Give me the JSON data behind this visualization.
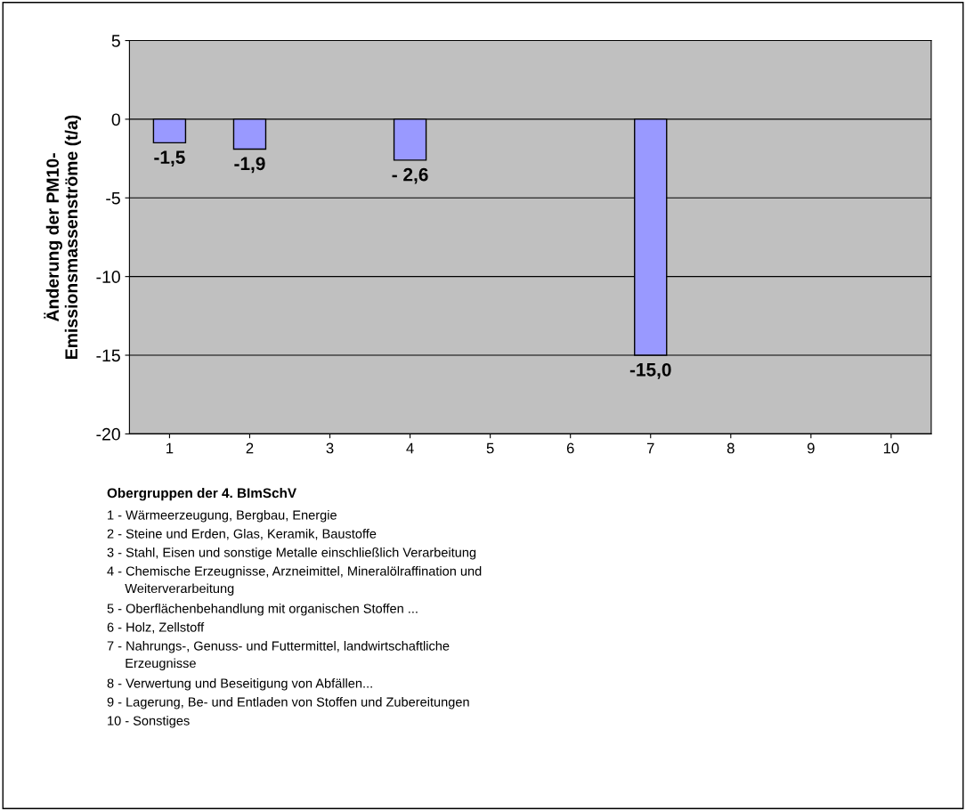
{
  "chart_data": {
    "type": "bar",
    "ylabel": "Änderung der PM10-\nEmissionsmassenströme (t/a)",
    "categories": [
      "1",
      "2",
      "3",
      "4",
      "5",
      "6",
      "7",
      "8",
      "9",
      "10"
    ],
    "values": [
      -1.5,
      -1.9,
      null,
      -2.6,
      null,
      null,
      -15.0,
      null,
      null,
      null
    ],
    "value_labels": [
      "-1,5",
      "-1,9",
      null,
      "- 2,6",
      null,
      null,
      "-15,0",
      null,
      null,
      null
    ],
    "color": "#9999ff",
    "ylim": [
      -20,
      5
    ],
    "yticks": [
      -20,
      -15,
      -10,
      -5,
      0,
      5
    ],
    "grid": "y",
    "annotations": [
      "Obergruppen der 4. BImSchV",
      "1 - Wärmeerzeugung, Bergbau, Energie",
      "2 - Steine und Erden, Glas, Keramik, Baustoffe",
      "3 - Stahl, Eisen und sonstige Metalle einschließlich Verarbeitung",
      "4 - Chemische Erzeugnisse, Arzneimittel, Mineralölraffination und\n     Weiterverarbeitung",
      "5 - Oberflächenbehandlung mit organischen Stoffen ...",
      "6 - Holz, Zellstoff",
      "7 - Nahrungs-, Genuss- und Futtermittel, landwirtschaftliche\n     Erzeugnisse",
      "8 - Verwertung und Beseitigung von Abfällen...",
      "9 - Lagerung, Be- und Entladen von Stoffen und Zubereitungen",
      "10 - Sonstiges"
    ]
  }
}
